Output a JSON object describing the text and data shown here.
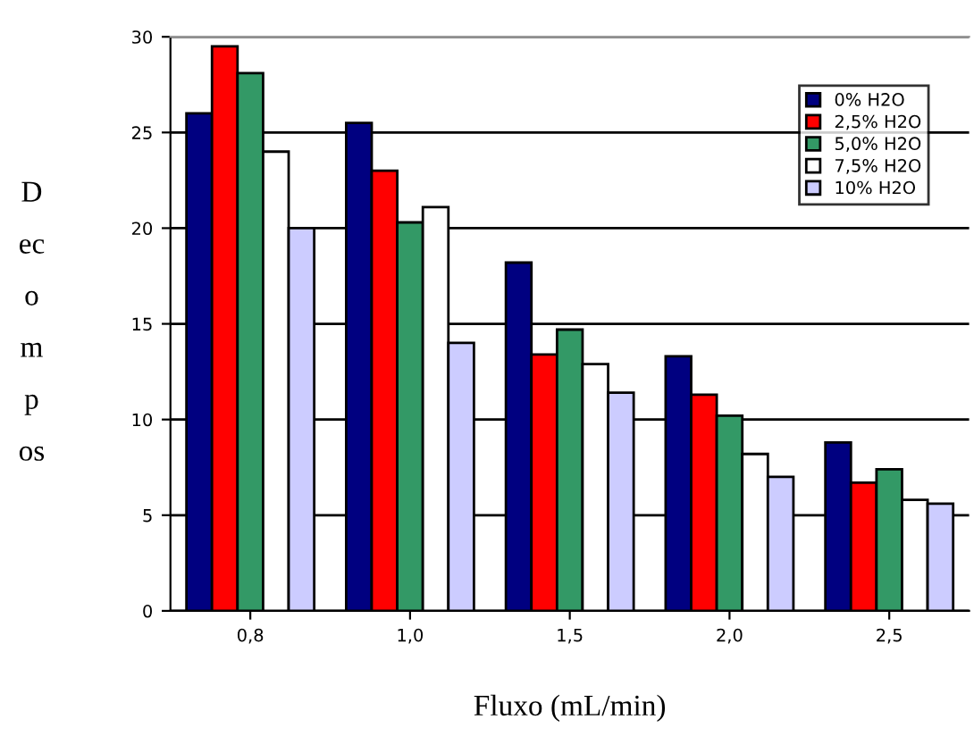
{
  "chart_data": {
    "type": "bar",
    "xlabel": "Fluxo (mL/min)",
    "ylabel": "D\nec\no\nm\np\nos",
    "categories": [
      "0,8",
      "1,0",
      "1,5",
      "2,0",
      "2,5"
    ],
    "series": [
      {
        "name": "0% H2O",
        "color": "#000080",
        "values": [
          26,
          25.5,
          18.2,
          13.3,
          8.8
        ]
      },
      {
        "name": "2,5% H2O",
        "color": "#ff0000",
        "values": [
          29.5,
          23,
          13.4,
          11.3,
          6.7
        ]
      },
      {
        "name": "5,0% H2O",
        "color": "#339966",
        "values": [
          28.1,
          20.3,
          14.7,
          10.2,
          7.4
        ]
      },
      {
        "name": "7,5% H2O",
        "color": "#ffffff",
        "values": [
          24,
          21.1,
          12.9,
          8.2,
          5.8
        ]
      },
      {
        "name": "10% H2O",
        "color": "#ccccff",
        "values": [
          20,
          14,
          11.4,
          7,
          5.6
        ]
      }
    ],
    "ylim": [
      0,
      30
    ],
    "yticks": [
      0,
      5,
      10,
      15,
      20,
      25,
      30
    ],
    "grid": "y",
    "legend": "top right"
  }
}
